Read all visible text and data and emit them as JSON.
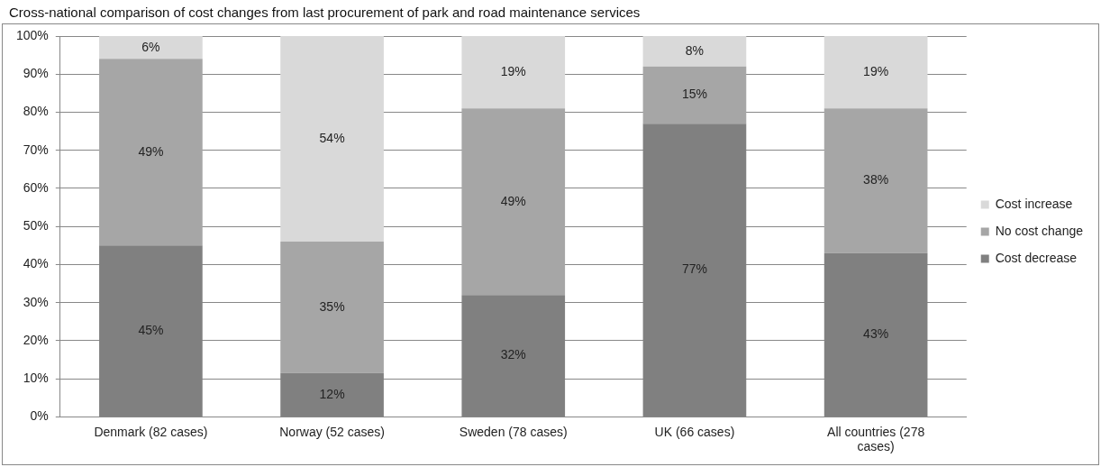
{
  "chart_data": {
    "type": "bar",
    "stacked": true,
    "title": "Cross-national comparison of cost changes from last procurement of park and road maintenance services",
    "categories": [
      "Denmark (82 cases)",
      "Norway (52 cases)",
      "Sweden (78 cases)",
      "UK (66 cases)",
      "All countries (278 cases)"
    ],
    "series": [
      {
        "name": "Cost decrease",
        "color": "#808080",
        "values": [
          45,
          11.5,
          32,
          77,
          43
        ],
        "value_labels": [
          "45%",
          "12%",
          "32%",
          "77%",
          "43%"
        ]
      },
      {
        "name": "No cost change",
        "color": "#a6a6a6",
        "values": [
          49,
          34.5,
          49,
          15,
          38
        ],
        "value_labels": [
          "49%",
          "35%",
          "49%",
          "15%",
          "38%"
        ]
      },
      {
        "name": "Cost increase",
        "color": "#d9d9d9",
        "values": [
          6,
          54,
          19,
          8,
          19
        ],
        "value_labels": [
          "6%",
          "54%",
          "19%",
          "8%",
          "19%"
        ]
      }
    ],
    "ylim": [
      0,
      100
    ],
    "yticks": [
      {
        "value": 0,
        "label": "0%"
      },
      {
        "value": 10,
        "label": "10%"
      },
      {
        "value": 20,
        "label": "20%"
      },
      {
        "value": 30,
        "label": "30%"
      },
      {
        "value": 40,
        "label": "40%"
      },
      {
        "value": 50,
        "label": "50%"
      },
      {
        "value": 60,
        "label": "60%"
      },
      {
        "value": 70,
        "label": "70%"
      },
      {
        "value": 80,
        "label": "80%"
      },
      {
        "value": 90,
        "label": "90%"
      },
      {
        "value": 100,
        "label": "100%"
      }
    ],
    "grid": "y",
    "legend": "right"
  }
}
